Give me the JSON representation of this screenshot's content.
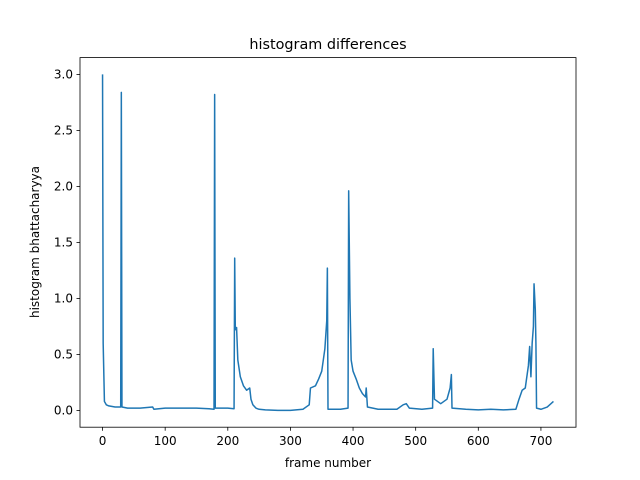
{
  "chart_data": {
    "type": "line",
    "title": "histogram differences",
    "xlabel": "frame number",
    "ylabel": "histogram bhattacharyya",
    "x": [
      0,
      1,
      3,
      6,
      10,
      20,
      29,
      30,
      31,
      40,
      60,
      80,
      82,
      100,
      110,
      130,
      150,
      170,
      178,
      179,
      180,
      200,
      210,
      211,
      212,
      214,
      216,
      220,
      225,
      230,
      235,
      237,
      240,
      245,
      250,
      260,
      280,
      300,
      320,
      330,
      332,
      340,
      345,
      350,
      355,
      358,
      359,
      360,
      380,
      392,
      393,
      395,
      397,
      400,
      405,
      410,
      415,
      420,
      421,
      423,
      440,
      470,
      480,
      485,
      490,
      510,
      527,
      528,
      530,
      540,
      550,
      555,
      557,
      558,
      580,
      600,
      620,
      640,
      660,
      665,
      670,
      675,
      680,
      682,
      684,
      686,
      688,
      689,
      691,
      692,
      693,
      700,
      710,
      720
    ],
    "series": [
      {
        "color": "#1f77b4",
        "values": [
          3.0,
          0.6,
          0.08,
          0.05,
          0.04,
          0.03,
          0.03,
          2.84,
          0.03,
          0.02,
          0.02,
          0.03,
          0.01,
          0.02,
          0.02,
          0.02,
          0.02,
          0.015,
          0.01,
          2.82,
          0.02,
          0.02,
          0.015,
          1.36,
          0.72,
          0.74,
          0.45,
          0.3,
          0.22,
          0.18,
          0.2,
          0.1,
          0.05,
          0.02,
          0.01,
          0.005,
          0.0,
          0.0,
          0.01,
          0.05,
          0.2,
          0.22,
          0.28,
          0.35,
          0.55,
          0.8,
          1.27,
          0.01,
          0.01,
          0.02,
          1.96,
          1.0,
          0.45,
          0.35,
          0.28,
          0.2,
          0.15,
          0.12,
          0.2,
          0.03,
          0.01,
          0.01,
          0.05,
          0.06,
          0.02,
          0.01,
          0.02,
          0.55,
          0.1,
          0.06,
          0.1,
          0.2,
          0.32,
          0.02,
          0.01,
          0.005,
          0.01,
          0.005,
          0.01,
          0.1,
          0.18,
          0.2,
          0.4,
          0.57,
          0.3,
          0.6,
          0.75,
          1.13,
          0.9,
          0.6,
          0.02,
          0.01,
          0.03,
          0.08
        ]
      }
    ],
    "xlim": [
      -36,
      756
    ],
    "ylim": [
      -0.15,
      3.15
    ],
    "xticks": [
      0,
      100,
      200,
      300,
      400,
      500,
      600,
      700
    ],
    "yticks": [
      {
        "value": 0,
        "label": "0.0"
      },
      0.5,
      {
        "value": 1,
        "label": "1.0"
      },
      1.5,
      {
        "value": 2,
        "label": "2.0"
      },
      2.5,
      {
        "value": 3,
        "label": "3.0"
      }
    ],
    "grid": false
  }
}
